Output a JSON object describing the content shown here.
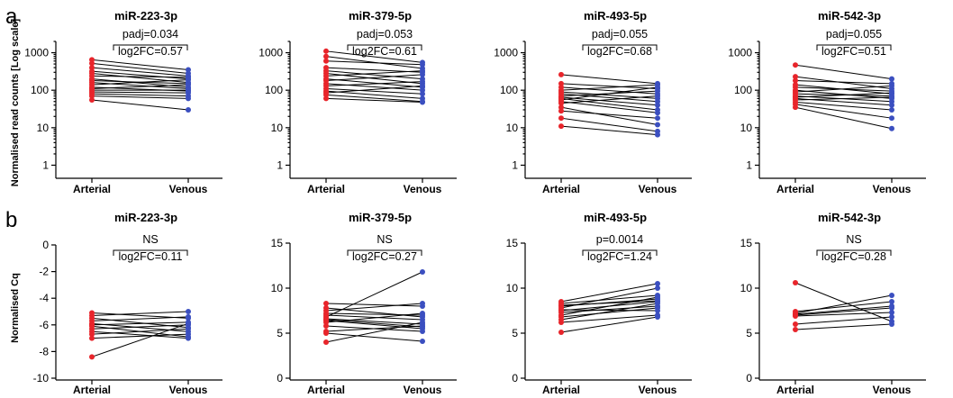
{
  "panels": [
    {
      "letter": "a",
      "ylabel": "Normalised read counts [Log scale]"
    },
    {
      "letter": "b",
      "ylabel": "Normalised Cq"
    }
  ],
  "colors": {
    "arterial": "#e8252b",
    "venous": "#3b4fc0"
  },
  "chart_data": [
    {
      "type": "line",
      "row": "a",
      "scale": "log",
      "title": "miR-223-3p",
      "categories": [
        "Arterial",
        "Venous"
      ],
      "ylim": [
        0.5,
        2000
      ],
      "yticks": [
        {
          "v": 1,
          "label": "1"
        },
        {
          "v": 10,
          "label": "10"
        },
        {
          "v": 100,
          "label": "100"
        },
        {
          "v": 1000,
          "label": "1000"
        }
      ],
      "stat": [
        "padj=0.034",
        "log2FC=0.57"
      ],
      "pairs": [
        [
          650,
          350
        ],
        [
          520,
          280
        ],
        [
          400,
          240
        ],
        [
          320,
          200
        ],
        [
          280,
          160
        ],
        [
          240,
          220
        ],
        [
          200,
          120
        ],
        [
          180,
          150
        ],
        [
          160,
          110
        ],
        [
          140,
          190
        ],
        [
          120,
          95
        ],
        [
          110,
          140
        ],
        [
          100,
          100
        ],
        [
          90,
          85
        ],
        [
          80,
          70
        ],
        [
          70,
          60
        ],
        [
          55,
          30
        ]
      ]
    },
    {
      "type": "line",
      "row": "a",
      "scale": "log",
      "title": "miR-379-5p",
      "categories": [
        "Arterial",
        "Venous"
      ],
      "ylim": [
        0.5,
        2000
      ],
      "yticks": [
        {
          "v": 1,
          "label": "1"
        },
        {
          "v": 10,
          "label": "10"
        },
        {
          "v": 100,
          "label": "100"
        },
        {
          "v": 1000,
          "label": "1000"
        }
      ],
      "stat": [
        "padj=0.053",
        "log2FC=0.61"
      ],
      "pairs": [
        [
          1100,
          550
        ],
        [
          800,
          380
        ],
        [
          600,
          480
        ],
        [
          400,
          300
        ],
        [
          330,
          200
        ],
        [
          280,
          150
        ],
        [
          240,
          330
        ],
        [
          200,
          120
        ],
        [
          180,
          260
        ],
        [
          150,
          100
        ],
        [
          130,
          170
        ],
        [
          110,
          80
        ],
        [
          95,
          60
        ],
        [
          85,
          130
        ],
        [
          75,
          50
        ],
        [
          60,
          48
        ]
      ]
    },
    {
      "type": "line",
      "row": "a",
      "scale": "log",
      "title": "miR-493-5p",
      "categories": [
        "Arterial",
        "Venous"
      ],
      "ylim": [
        0.5,
        2000
      ],
      "yticks": [
        {
          "v": 1,
          "label": "1"
        },
        {
          "v": 10,
          "label": "10"
        },
        {
          "v": 100,
          "label": "100"
        },
        {
          "v": 1000,
          "label": "1000"
        }
      ],
      "stat": [
        "padj=0.055",
        "log2FC=0.68"
      ],
      "pairs": [
        [
          260,
          150
        ],
        [
          150,
          110
        ],
        [
          120,
          80
        ],
        [
          100,
          140
        ],
        [
          90,
          60
        ],
        [
          80,
          50
        ],
        [
          70,
          95
        ],
        [
          65,
          40
        ],
        [
          60,
          30
        ],
        [
          55,
          120
        ],
        [
          50,
          25
        ],
        [
          45,
          70
        ],
        [
          35,
          12
        ],
        [
          28,
          18
        ],
        [
          18,
          8
        ],
        [
          11,
          6.5
        ]
      ]
    },
    {
      "type": "line",
      "row": "a",
      "scale": "log",
      "title": "miR-542-3p",
      "categories": [
        "Arterial",
        "Venous"
      ],
      "ylim": [
        0.5,
        2000
      ],
      "yticks": [
        {
          "v": 1,
          "label": "1"
        },
        {
          "v": 10,
          "label": "10"
        },
        {
          "v": 100,
          "label": "100"
        },
        {
          "v": 1000,
          "label": "1000"
        }
      ],
      "stat": [
        "padj=0.055",
        "log2FC=0.51"
      ],
      "pairs": [
        [
          470,
          200
        ],
        [
          230,
          110
        ],
        [
          180,
          150
        ],
        [
          140,
          80
        ],
        [
          120,
          95
        ],
        [
          100,
          60
        ],
        [
          90,
          130
        ],
        [
          80,
          70
        ],
        [
          70,
          50
        ],
        [
          65,
          85
        ],
        [
          60,
          40
        ],
        [
          55,
          65
        ],
        [
          48,
          30
        ],
        [
          42,
          18
        ],
        [
          35,
          9.5
        ]
      ]
    },
    {
      "type": "line",
      "row": "b",
      "scale": "linear",
      "title": "miR-223-3p",
      "categories": [
        "Arterial",
        "Venous"
      ],
      "ylim": [
        -10,
        0
      ],
      "yticks": [
        {
          "v": -10,
          "label": "-10"
        },
        {
          "v": -8,
          "label": "-8"
        },
        {
          "v": -6,
          "label": "-6"
        },
        {
          "v": -4,
          "label": "-4"
        },
        {
          "v": -2,
          "label": "-2"
        },
        {
          "v": 0,
          "label": "0"
        }
      ],
      "stat": [
        "NS",
        "log2FC=0.11"
      ],
      "pairs": [
        [
          -5.1,
          -5.5
        ],
        [
          -5.3,
          -5.0
        ],
        [
          -5.5,
          -6.2
        ],
        [
          -5.7,
          -5.4
        ],
        [
          -5.9,
          -6.5
        ],
        [
          -6.0,
          -5.8
        ],
        [
          -6.1,
          -6.9
        ],
        [
          -6.3,
          -6.0
        ],
        [
          -6.5,
          -7.0
        ],
        [
          -6.7,
          -6.3
        ],
        [
          -7.0,
          -6.7
        ],
        [
          -8.4,
          -5.9
        ]
      ]
    },
    {
      "type": "line",
      "row": "b",
      "scale": "linear",
      "title": "miR-379-5p",
      "categories": [
        "Arterial",
        "Venous"
      ],
      "ylim": [
        0,
        15
      ],
      "yticks": [
        {
          "v": 0,
          "label": "0"
        },
        {
          "v": 5,
          "label": "5"
        },
        {
          "v": 10,
          "label": "10"
        },
        {
          "v": 15,
          "label": "15"
        }
      ],
      "stat": [
        "NS",
        "log2FC=0.27"
      ],
      "pairs": [
        [
          8.3,
          8.0
        ],
        [
          7.5,
          8.3
        ],
        [
          7.2,
          7.0
        ],
        [
          7.0,
          6.5
        ],
        [
          6.8,
          11.8
        ],
        [
          6.6,
          6.0
        ],
        [
          6.4,
          5.5
        ],
        [
          6.2,
          7.2
        ],
        [
          5.8,
          5.2
        ],
        [
          5.0,
          4.1
        ],
        [
          5.2,
          5.8
        ],
        [
          4.0,
          6.2
        ],
        [
          7.8,
          6.8
        ],
        [
          6.5,
          5.7
        ]
      ]
    },
    {
      "type": "line",
      "row": "b",
      "scale": "linear",
      "title": "miR-493-5p",
      "categories": [
        "Arterial",
        "Venous"
      ],
      "ylim": [
        0,
        15
      ],
      "yticks": [
        {
          "v": 0,
          "label": "0"
        },
        {
          "v": 5,
          "label": "5"
        },
        {
          "v": 10,
          "label": "10"
        },
        {
          "v": 15,
          "label": "15"
        }
      ],
      "stat": [
        "p=0.0014",
        "log2FC=1.24"
      ],
      "pairs": [
        [
          8.5,
          10.5
        ],
        [
          8.3,
          9.2
        ],
        [
          8.0,
          8.8
        ],
        [
          7.8,
          10.0
        ],
        [
          7.5,
          8.5
        ],
        [
          7.3,
          8.0
        ],
        [
          7.0,
          9.0
        ],
        [
          6.8,
          7.8
        ],
        [
          6.5,
          8.3
        ],
        [
          6.2,
          7.0
        ],
        [
          5.1,
          6.8
        ],
        [
          8.1,
          8.6
        ],
        [
          7.6,
          7.5
        ]
      ]
    },
    {
      "type": "line",
      "row": "b",
      "scale": "linear",
      "title": "miR-542-3p",
      "categories": [
        "Arterial",
        "Venous"
      ],
      "ylim": [
        0,
        15
      ],
      "yticks": [
        {
          "v": 0,
          "label": "0"
        },
        {
          "v": 5,
          "label": "5"
        },
        {
          "v": 10,
          "label": "10"
        },
        {
          "v": 15,
          "label": "15"
        }
      ],
      "stat": [
        "NS",
        "log2FC=0.28"
      ],
      "pairs": [
        [
          10.6,
          6.3
        ],
        [
          7.4,
          8.5
        ],
        [
          7.2,
          9.2
        ],
        [
          7.0,
          7.8
        ],
        [
          6.9,
          7.3
        ],
        [
          6.0,
          6.8
        ],
        [
          5.4,
          6.0
        ],
        [
          7.1,
          8.0
        ]
      ]
    }
  ]
}
